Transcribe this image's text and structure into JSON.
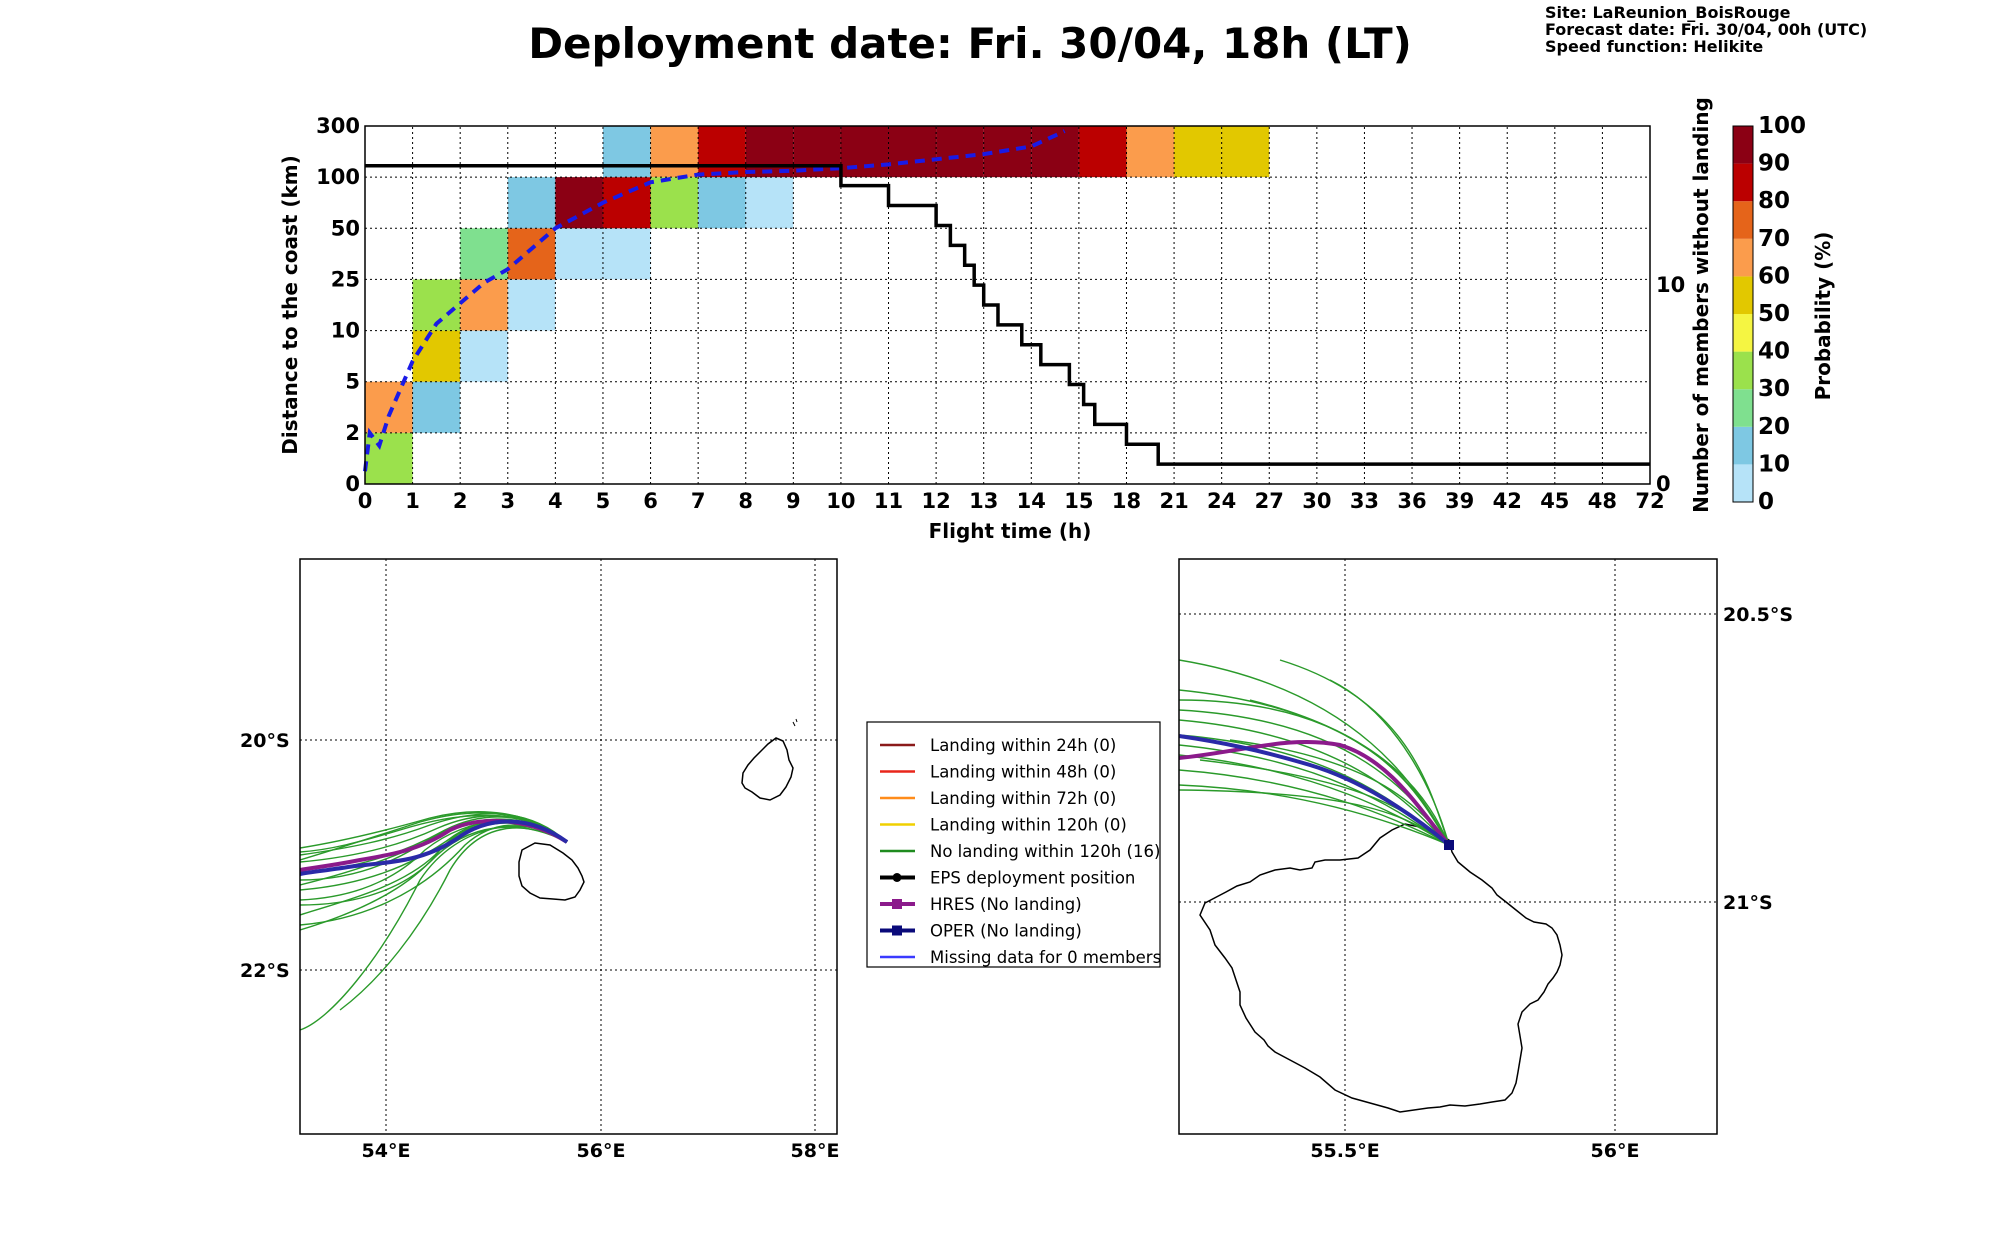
{
  "header": {
    "title": "Deployment date: Fri. 30/04, 18h (LT)",
    "site": "Site: LaReunion_BoisRouge",
    "forecast": "Forecast date: Fri. 30/04, 00h (UTC)",
    "speed": "Speed function: Helikite"
  },
  "chart_data": [
    {
      "type": "heatmap",
      "xlabel": "Flight time (h)",
      "ylabel": "Distance to the coast (km)",
      "y2label": "Number of members without landing",
      "x_ticks": [
        "0",
        "1",
        "2",
        "3",
        "4",
        "5",
        "6",
        "7",
        "8",
        "9",
        "10",
        "11",
        "12",
        "13",
        "14",
        "15",
        "18",
        "21",
        "24",
        "27",
        "30",
        "33",
        "36",
        "39",
        "42",
        "45",
        "48",
        "72"
      ],
      "y_ticks": [
        "0",
        "2",
        "5",
        "10",
        "25",
        "50",
        "100",
        "300"
      ],
      "y2_ticks": [
        "0",
        "10"
      ],
      "y2_range": [
        0,
        18
      ],
      "grid": true,
      "colorbar": {
        "label": "Probability (%)",
        "ticks": [
          "0",
          "10",
          "20",
          "30",
          "40",
          "50",
          "60",
          "70",
          "80",
          "90",
          "100"
        ],
        "colors": [
          "#b6e3f8",
          "#7ec8e3",
          "#7fe08f",
          "#9be14c",
          "#f5f542",
          "#e2c800",
          "#fb9c4c",
          "#e5641a",
          "#bb0000",
          "#8b0014"
        ]
      },
      "cells": [
        {
          "x": "0-1",
          "y": "0-2",
          "p": 30
        },
        {
          "x": "0-1",
          "y": "2-5",
          "p": 60
        },
        {
          "x": "1-2",
          "y": "2-5",
          "p": 10
        },
        {
          "x": "1-2",
          "y": "5-10",
          "p": 50
        },
        {
          "x": "1-2",
          "y": "10-25",
          "p": 30
        },
        {
          "x": "2-3",
          "y": "5-10",
          "p": 0
        },
        {
          "x": "2-3",
          "y": "10-25",
          "p": 60
        },
        {
          "x": "2-3",
          "y": "25-50",
          "p": 20
        },
        {
          "x": "3-4",
          "y": "10-25",
          "p": 0
        },
        {
          "x": "3-4",
          "y": "25-50",
          "p": 70
        },
        {
          "x": "3-4",
          "y": "50-100",
          "p": 10
        },
        {
          "x": "4-5",
          "y": "25-50",
          "p": 0
        },
        {
          "x": "4-5",
          "y": "50-100",
          "p": 100
        },
        {
          "x": "5-6",
          "y": "25-50",
          "p": 0
        },
        {
          "x": "5-6",
          "y": "50-100",
          "p": 80
        },
        {
          "x": "5-6",
          "y": "100-300",
          "p": 10
        },
        {
          "x": "6-7",
          "y": "50-100",
          "p": 30
        },
        {
          "x": "6-7",
          "y": "100-300",
          "p": 60
        },
        {
          "x": "7-8",
          "y": "50-100",
          "p": 10
        },
        {
          "x": "7-8",
          "y": "100-300",
          "p": 80
        },
        {
          "x": "8-9",
          "y": "50-100",
          "p": 0
        },
        {
          "x": "8-9",
          "y": "100-300",
          "p": 100
        },
        {
          "x": "9-10",
          "y": "100-300",
          "p": 100
        },
        {
          "x": "10-11",
          "y": "100-300",
          "p": 100
        },
        {
          "x": "11-12",
          "y": "100-300",
          "p": 100
        },
        {
          "x": "12-13",
          "y": "100-300",
          "p": 100
        },
        {
          "x": "13-14",
          "y": "100-300",
          "p": 100
        },
        {
          "x": "14-15",
          "y": "100-300",
          "p": 100
        },
        {
          "x": "15-18",
          "y": "100-300",
          "p": 80
        },
        {
          "x": "18-21",
          "y": "100-300",
          "p": 60
        },
        {
          "x": "21-24",
          "y": "100-300",
          "p": 50
        },
        {
          "x": "24-27",
          "y": "100-300",
          "p": 50
        }
      ],
      "series": [
        {
          "style": "dashed-blue",
          "points": [
            [
              0,
              0.5
            ],
            [
              0.1,
              2
            ],
            [
              0.3,
              1.5
            ],
            [
              0.5,
              3
            ],
            [
              1,
              7
            ],
            [
              1.5,
              12
            ],
            [
              2,
              18
            ],
            [
              2.5,
              24
            ],
            [
              3,
              30
            ],
            [
              3.5,
              40
            ],
            [
              4,
              50
            ],
            [
              5,
              75
            ],
            [
              6,
              95
            ],
            [
              7,
              110
            ],
            [
              8,
              120
            ],
            [
              9,
              125
            ],
            [
              10,
              135
            ],
            [
              11,
              150
            ],
            [
              12,
              170
            ],
            [
              13,
              190
            ],
            [
              14,
              220
            ],
            [
              14.7,
              280
            ]
          ]
        },
        {
          "style": "solid-black",
          "steps": [
            [
              0,
              16
            ],
            [
              10,
              15
            ],
            [
              11,
              14
            ],
            [
              12,
              13
            ],
            [
              12.3,
              12
            ],
            [
              12.6,
              11
            ],
            [
              12.8,
              10
            ],
            [
              13,
              9
            ],
            [
              13.3,
              8
            ],
            [
              13.8,
              7
            ],
            [
              14.2,
              6
            ],
            [
              14.8,
              5
            ],
            [
              15.3,
              4
            ],
            [
              16,
              3
            ],
            [
              18,
              2
            ],
            [
              20,
              1
            ],
            [
              24,
              1
            ],
            [
              72,
              1
            ]
          ]
        }
      ]
    },
    {
      "type": "line",
      "region": "left-map",
      "x_ticks": [
        "54°E",
        "56°E",
        "58°E"
      ],
      "y_ticks": [
        "20°S",
        "22°S"
      ]
    },
    {
      "type": "line",
      "region": "right-map",
      "x_ticks": [
        "55.5°E",
        "56°E"
      ],
      "y_ticks": [
        "20.5°S",
        "21°S"
      ]
    }
  ],
  "legend": [
    {
      "label": "Landing within 24h (0)",
      "color": "#8b1a1a",
      "marker": "none"
    },
    {
      "label": "Landing within 48h (0)",
      "color": "#e8261b",
      "marker": "none"
    },
    {
      "label": "Landing within 72h (0)",
      "color": "#ff8c1a",
      "marker": "none"
    },
    {
      "label": "Landing within 120h (0)",
      "color": "#f0d000",
      "marker": "none"
    },
    {
      "label": "No landing within 120h (16)",
      "color": "#1f8b1f",
      "marker": "none"
    },
    {
      "label": "EPS deployment position",
      "color": "#000000",
      "marker": "circle"
    },
    {
      "label": "HRES (No landing)",
      "color": "#8b1a8b",
      "marker": "square"
    },
    {
      "label": "OPER (No landing)",
      "color": "#0a0a7a",
      "marker": "square"
    },
    {
      "label": "Missing data for 0 members",
      "color": "#3a3aff",
      "marker": "none"
    }
  ]
}
